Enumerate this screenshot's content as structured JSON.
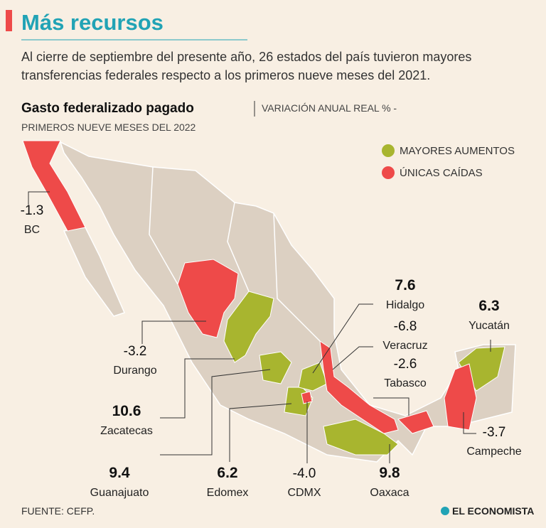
{
  "header": {
    "title": "Más recursos",
    "subtitle_1": "Al cierre de septiembre del presente año, 26 estados del país tuvieron mayores",
    "subtitle_2": "transferencias federales respecto a los primeros nueve meses del 2021."
  },
  "chart": {
    "title": "Gasto federalizado pagado",
    "subtitle_1": "VARIACIÓN ANUAL REAL % -",
    "subtitle_2": "PRIMEROS NUEVE MESES DEL 2022"
  },
  "legend": [
    {
      "label": "MAYORES AUMENTOS",
      "color": "#a8b52f"
    },
    {
      "label": "ÚNICAS CAÍDAS",
      "color": "#ee4a49"
    }
  ],
  "states": [
    {
      "name": "BC",
      "value": "-1.3",
      "group": 1
    },
    {
      "name": "Durango",
      "value": "-3.2",
      "group": 1
    },
    {
      "name": "Zacatecas",
      "value": "10.6",
      "group": 0
    },
    {
      "name": "Guanajuato",
      "value": "9.4",
      "group": 0
    },
    {
      "name": "Edomex",
      "value": "6.2",
      "group": 0
    },
    {
      "name": "CDMX",
      "value": "-4.0",
      "group": 1
    },
    {
      "name": "Oaxaca",
      "value": "9.8",
      "group": 0
    },
    {
      "name": "Hidalgo",
      "value": "7.6",
      "group": 0
    },
    {
      "name": "Veracruz",
      "value": "-6.8",
      "group": 1
    },
    {
      "name": "Tabasco",
      "value": "-2.6",
      "group": 1
    },
    {
      "name": "Yucatán",
      "value": "6.3",
      "group": 0
    },
    {
      "name": "Campeche",
      "value": "-3.7",
      "group": 1
    }
  ],
  "footer": {
    "source": "FUENTE: CEFP.",
    "brand": "EL ECONOMISTA"
  }
}
